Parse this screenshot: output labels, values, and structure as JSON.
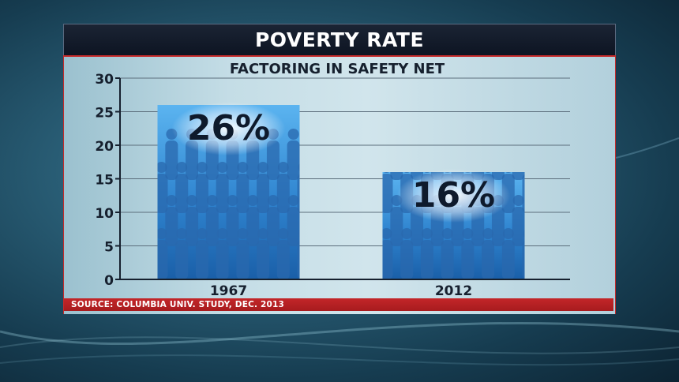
{
  "title": "POVERTY RATE",
  "subtitle": "FACTORING IN SAFETY NET",
  "source": "SOURCE: COLUMBIA UNIV. STUDY, DEC. 2013",
  "colors": {
    "bar_top": "#4aa3e8",
    "bar_bottom": "#1a5fa8",
    "silhouette": "#2f6fb4",
    "label_text": "#0e1a2c",
    "source_bar": "#c32629",
    "panel_border": "#c62a2a"
  },
  "chart_data": {
    "type": "bar",
    "title": "POVERTY RATE",
    "subtitle": "FACTORING IN SAFETY NET",
    "categories": [
      "1967",
      "2012"
    ],
    "values": [
      26,
      16
    ],
    "data_labels": [
      "26%",
      "16%"
    ],
    "ylim": [
      0,
      30
    ],
    "yticks": [
      0,
      5,
      10,
      15,
      20,
      25,
      30
    ],
    "xlabel": "",
    "ylabel": "",
    "grid": true
  }
}
